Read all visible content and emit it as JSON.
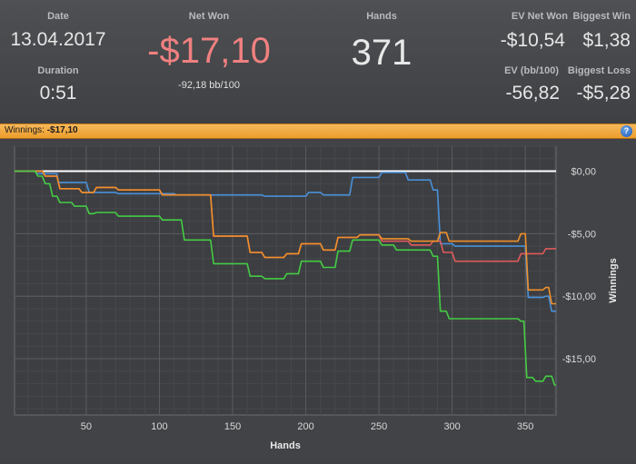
{
  "stats": {
    "date": {
      "label": "Date",
      "value": "13.04.2017"
    },
    "duration": {
      "label": "Duration",
      "value": "0:51"
    },
    "net_won": {
      "label": "Net Won",
      "value": "-$17,10",
      "sub": "-92,18 bb/100"
    },
    "hands": {
      "label": "Hands",
      "value": "371"
    },
    "ev_net_won": {
      "label": "EV Net Won",
      "value": "-$10,54"
    },
    "biggest_win": {
      "label": "Biggest Win",
      "value": "$1,38"
    },
    "ev_bb100": {
      "label": "EV (bb/100)",
      "value": "-56,82"
    },
    "biggest_loss": {
      "label": "Biggest Loss",
      "value": "-$5,28"
    }
  },
  "bar": {
    "label": "Winnings:",
    "value": "-$17,10",
    "help_icon": "?"
  },
  "colors": {
    "net_won": "#f08080",
    "accent_bar": "#f0a030"
  },
  "chart_data": {
    "type": "line",
    "xlabel": "Hands",
    "ylabel": "Winnings",
    "xlim": [
      1,
      371
    ],
    "ylim": [
      -19.5,
      2
    ],
    "x_ticks": [
      50,
      100,
      150,
      200,
      250,
      300,
      350
    ],
    "x_tick_labels": [
      "50",
      "100",
      "150",
      "200",
      "250",
      "300",
      "350"
    ],
    "y_ticks": [
      0,
      -5,
      -10,
      -15
    ],
    "y_tick_labels": [
      "$0,00",
      "-$5,00",
      "-$10,00",
      "-$15,00"
    ],
    "grid": true,
    "series": [
      {
        "color": "#ffffff",
        "points": [
          [
            1,
            0
          ],
          [
            371,
            0
          ]
        ]
      },
      {
        "color": "#4a90d9",
        "points": [
          [
            1,
            0
          ],
          [
            15,
            0
          ],
          [
            16,
            -0.2
          ],
          [
            30,
            -0.2
          ],
          [
            31,
            -0.9
          ],
          [
            50,
            -0.9
          ],
          [
            52,
            -1.7
          ],
          [
            70,
            -1.7
          ],
          [
            72,
            -1.8
          ],
          [
            110,
            -1.8
          ],
          [
            112,
            -1.9
          ],
          [
            170,
            -1.9
          ],
          [
            172,
            -2.0
          ],
          [
            200,
            -2.0
          ],
          [
            202,
            -1.7
          ],
          [
            210,
            -1.7
          ],
          [
            212,
            -1.9
          ],
          [
            230,
            -1.9
          ],
          [
            232,
            -0.5
          ],
          [
            250,
            -0.5
          ],
          [
            252,
            -0.1
          ],
          [
            268,
            -0.1
          ],
          [
            270,
            -0.7
          ],
          [
            285,
            -0.7
          ],
          [
            287,
            -1.5
          ],
          [
            290,
            -1.5
          ],
          [
            292,
            -5.8
          ],
          [
            300,
            -5.8
          ],
          [
            302,
            -6.0
          ],
          [
            350,
            -6.0
          ],
          [
            352,
            -10.1
          ],
          [
            362,
            -10.1
          ],
          [
            364,
            -10.0
          ],
          [
            366,
            -10.0
          ],
          [
            368,
            -11.2
          ],
          [
            371,
            -11.2
          ]
        ]
      },
      {
        "color": "#e05a5a",
        "points": [
          [
            1,
            0
          ],
          [
            20,
            0
          ],
          [
            22,
            -0.4
          ],
          [
            30,
            -0.4
          ],
          [
            32,
            -1.4
          ],
          [
            45,
            -1.4
          ],
          [
            47,
            -1.7
          ],
          [
            55,
            -1.7
          ],
          [
            57,
            -1.3
          ],
          [
            70,
            -1.3
          ],
          [
            72,
            -1.5
          ],
          [
            100,
            -1.5
          ],
          [
            102,
            -1.9
          ],
          [
            135,
            -1.9
          ],
          [
            137,
            -5.2
          ],
          [
            160,
            -5.2
          ],
          [
            162,
            -6.5
          ],
          [
            170,
            -6.5
          ],
          [
            172,
            -6.9
          ],
          [
            185,
            -6.9
          ],
          [
            187,
            -6.6
          ],
          [
            195,
            -6.6
          ],
          [
            197,
            -5.8
          ],
          [
            210,
            -5.8
          ],
          [
            212,
            -6.3
          ],
          [
            220,
            -6.3
          ],
          [
            222,
            -5.3
          ],
          [
            235,
            -5.3
          ],
          [
            237,
            -5.1
          ],
          [
            250,
            -5.1
          ],
          [
            252,
            -5.6
          ],
          [
            270,
            -5.6
          ],
          [
            272,
            -5.9
          ],
          [
            285,
            -5.9
          ],
          [
            287,
            -5.6
          ],
          [
            292,
            -5.6
          ],
          [
            294,
            -6.5
          ],
          [
            300,
            -6.5
          ],
          [
            302,
            -7.2
          ],
          [
            345,
            -7.2
          ],
          [
            347,
            -6.6
          ],
          [
            362,
            -6.6
          ],
          [
            364,
            -6.2
          ],
          [
            371,
            -6.2
          ]
        ]
      },
      {
        "color": "#f0902a",
        "points": [
          [
            1,
            0
          ],
          [
            20,
            0
          ],
          [
            22,
            -0.4
          ],
          [
            30,
            -0.4
          ],
          [
            32,
            -1.4
          ],
          [
            45,
            -1.4
          ],
          [
            47,
            -1.7
          ],
          [
            55,
            -1.7
          ],
          [
            57,
            -1.3
          ],
          [
            70,
            -1.3
          ],
          [
            72,
            -1.5
          ],
          [
            100,
            -1.5
          ],
          [
            102,
            -1.9
          ],
          [
            135,
            -1.9
          ],
          [
            137,
            -5.2
          ],
          [
            160,
            -5.2
          ],
          [
            162,
            -6.5
          ],
          [
            170,
            -6.5
          ],
          [
            172,
            -6.9
          ],
          [
            185,
            -6.9
          ],
          [
            187,
            -6.6
          ],
          [
            195,
            -6.6
          ],
          [
            197,
            -5.8
          ],
          [
            210,
            -5.8
          ],
          [
            212,
            -6.3
          ],
          [
            220,
            -6.3
          ],
          [
            222,
            -5.3
          ],
          [
            235,
            -5.3
          ],
          [
            237,
            -5.1
          ],
          [
            250,
            -5.1
          ],
          [
            252,
            -5.4
          ],
          [
            270,
            -5.4
          ],
          [
            272,
            -5.6
          ],
          [
            290,
            -5.6
          ],
          [
            292,
            -4.9
          ],
          [
            296,
            -4.9
          ],
          [
            298,
            -5.6
          ],
          [
            345,
            -5.6
          ],
          [
            347,
            -5.0
          ],
          [
            350,
            -5.0
          ],
          [
            352,
            -9.5
          ],
          [
            362,
            -9.5
          ],
          [
            364,
            -9.3
          ],
          [
            366,
            -9.3
          ],
          [
            368,
            -10.6
          ],
          [
            371,
            -10.6
          ]
        ]
      },
      {
        "color": "#44cc44",
        "points": [
          [
            1,
            0
          ],
          [
            15,
            0
          ],
          [
            17,
            -0.4
          ],
          [
            20,
            -0.4
          ],
          [
            22,
            -1.0
          ],
          [
            25,
            -1.0
          ],
          [
            27,
            -2.0
          ],
          [
            30,
            -2.0
          ],
          [
            32,
            -2.5
          ],
          [
            40,
            -2.5
          ],
          [
            42,
            -2.8
          ],
          [
            50,
            -2.8
          ],
          [
            52,
            -3.4
          ],
          [
            55,
            -3.4
          ],
          [
            57,
            -3.3
          ],
          [
            70,
            -3.3
          ],
          [
            72,
            -3.6
          ],
          [
            100,
            -3.6
          ],
          [
            102,
            -3.9
          ],
          [
            115,
            -3.9
          ],
          [
            117,
            -5.5
          ],
          [
            135,
            -5.5
          ],
          [
            137,
            -7.4
          ],
          [
            160,
            -7.4
          ],
          [
            162,
            -8.4
          ],
          [
            170,
            -8.4
          ],
          [
            172,
            -8.6
          ],
          [
            185,
            -8.6
          ],
          [
            187,
            -8.2
          ],
          [
            195,
            -8.2
          ],
          [
            197,
            -7.2
          ],
          [
            210,
            -7.2
          ],
          [
            212,
            -7.7
          ],
          [
            220,
            -7.7
          ],
          [
            222,
            -6.4
          ],
          [
            230,
            -6.4
          ],
          [
            232,
            -5.5
          ],
          [
            250,
            -5.5
          ],
          [
            252,
            -5.9
          ],
          [
            260,
            -5.9
          ],
          [
            262,
            -6.3
          ],
          [
            285,
            -6.3
          ],
          [
            287,
            -6.8
          ],
          [
            290,
            -6.8
          ],
          [
            292,
            -11.2
          ],
          [
            296,
            -11.2
          ],
          [
            298,
            -11.8
          ],
          [
            345,
            -11.8
          ],
          [
            347,
            -12.0
          ],
          [
            349,
            -12.0
          ],
          [
            351,
            -16.5
          ],
          [
            355,
            -16.5
          ],
          [
            357,
            -16.8
          ],
          [
            362,
            -16.8
          ],
          [
            364,
            -16.4
          ],
          [
            368,
            -16.4
          ],
          [
            370,
            -17.1
          ],
          [
            371,
            -17.1
          ]
        ]
      }
    ]
  }
}
